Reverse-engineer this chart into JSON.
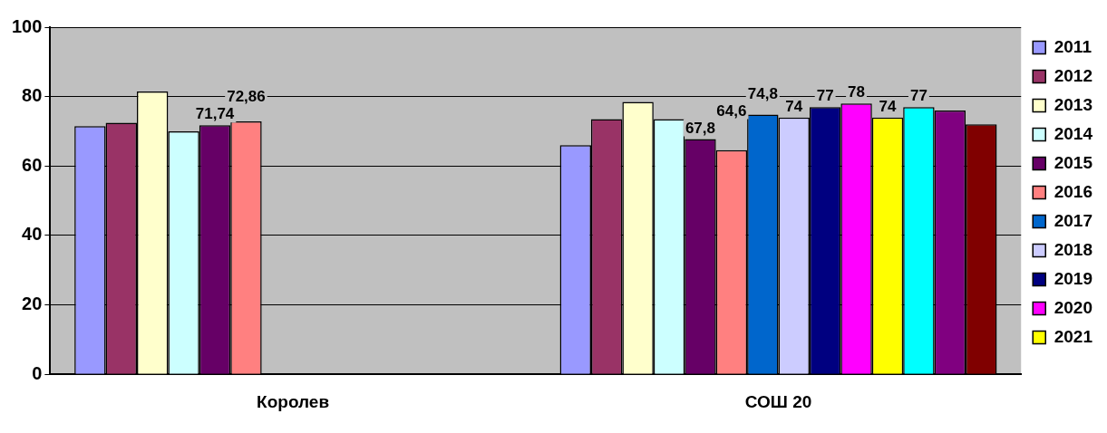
{
  "chart_data": {
    "type": "bar",
    "categories": [
      "Королев",
      "СОШ 20"
    ],
    "ylim": [
      0,
      100
    ],
    "yticks": [
      0,
      20,
      40,
      60,
      80,
      100
    ],
    "grid": "y",
    "legend": "right",
    "series": [
      {
        "name": "2011",
        "color": "#9999ff",
        "values": [
          71.5,
          66
        ]
      },
      {
        "name": "2012",
        "color": "#993366",
        "values": [
          72.5,
          73.5
        ]
      },
      {
        "name": "2013",
        "color": "#ffffcc",
        "values": [
          81.5,
          78.5
        ]
      },
      {
        "name": "2014",
        "color": "#ccffff",
        "values": [
          70,
          73.5
        ]
      },
      {
        "name": "2015",
        "color": "#660066",
        "values": [
          71.74,
          67.8
        ],
        "value_labels": [
          "71,74",
          "67,8"
        ]
      },
      {
        "name": "2016",
        "color": "#ff8080",
        "values": [
          72.86,
          64.6
        ],
        "value_labels": [
          "72,86",
          "64,6"
        ]
      },
      {
        "name": "2017",
        "color": "#0066cc",
        "values": [
          null,
          74.8
        ],
        "value_labels": [
          null,
          "74,8"
        ]
      },
      {
        "name": "2018",
        "color": "#ccccff",
        "values": [
          null,
          74
        ],
        "value_labels": [
          null,
          "74"
        ]
      },
      {
        "name": "2019",
        "color": "#000080",
        "values": [
          null,
          77
        ],
        "value_labels": [
          null,
          "77"
        ]
      },
      {
        "name": "2020",
        "color": "#ff00ff",
        "values": [
          null,
          78
        ],
        "value_labels": [
          null,
          "78"
        ]
      },
      {
        "name": "2021",
        "color": "#ffff00",
        "values": [
          null,
          74
        ],
        "value_labels": [
          null,
          "74"
        ]
      },
      {
        "color": "#00ffff",
        "values": [
          null,
          77
        ],
        "value_labels": [
          null,
          "77"
        ]
      },
      {
        "color": "#800080",
        "values": [
          null,
          76
        ]
      },
      {
        "color": "#800000",
        "values": [
          null,
          72
        ]
      }
    ]
  }
}
